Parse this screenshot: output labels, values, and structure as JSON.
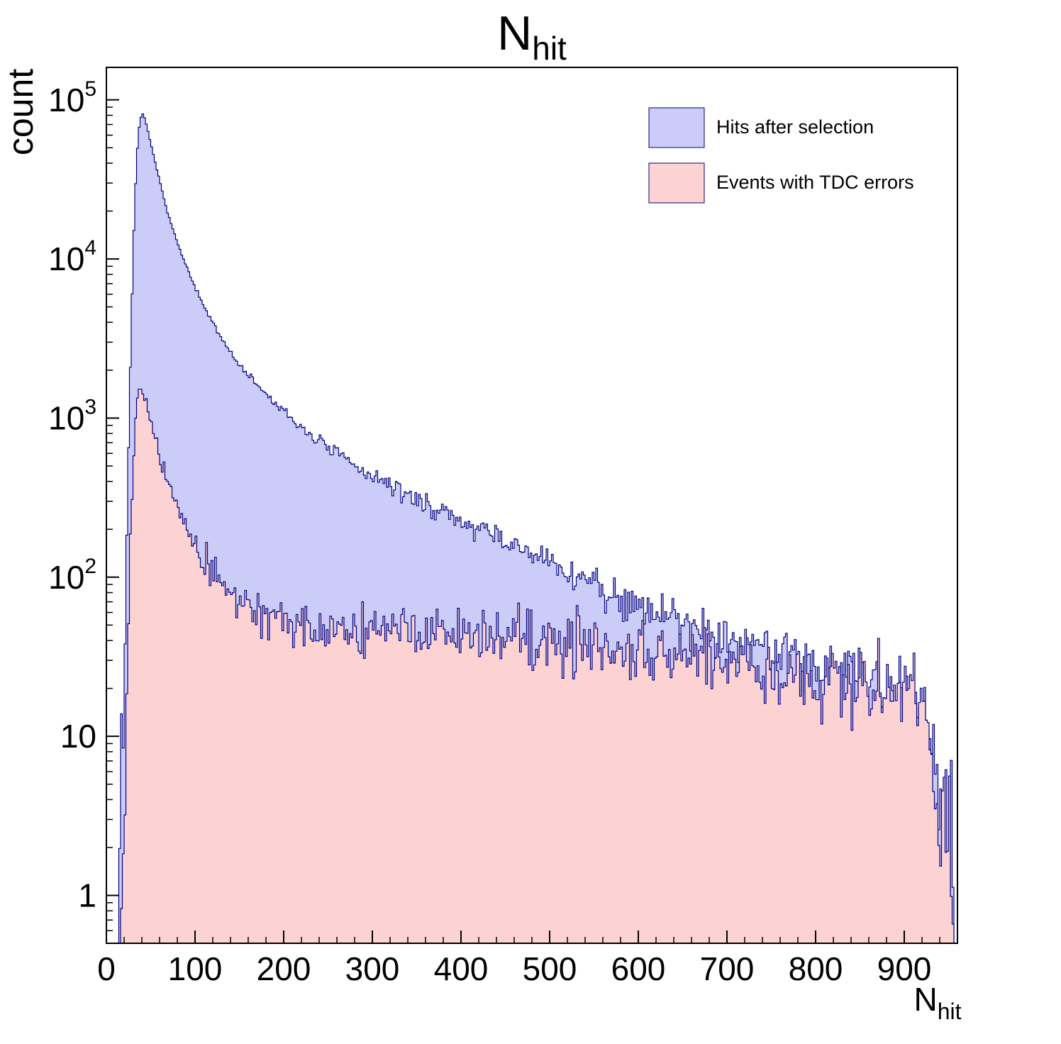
{
  "chart_data": {
    "type": "histogram",
    "title": {
      "main": "N",
      "sub": "hit"
    },
    "xlabel": {
      "main": "N",
      "sub": "hit"
    },
    "ylabel": "count",
    "x_range": [
      0,
      960
    ],
    "y_range": [
      0.5,
      160000
    ],
    "y_scale": "log",
    "grid": false,
    "bin_width": 2,
    "noise_scale": 1.25,
    "x_ticks": {
      "major": [
        0,
        100,
        200,
        300,
        400,
        500,
        600,
        700,
        800,
        900
      ],
      "minor_step": 20
    },
    "y_ticks": [
      {
        "value": 1,
        "label": "1"
      },
      {
        "value": 10,
        "label": "10"
      },
      {
        "value": 100,
        "label": "10",
        "sup": "2"
      },
      {
        "value": 1000,
        "label": "10",
        "sup": "3"
      },
      {
        "value": 10000,
        "label": "10",
        "sup": "4"
      },
      {
        "value": 100000,
        "label": "10",
        "sup": "5"
      }
    ],
    "legend": {
      "position": "top-right",
      "items": [
        {
          "label": "Hits after selection",
          "swatch": "#ccccf8",
          "line": "#000080"
        },
        {
          "label": "Events with TDC errors",
          "swatch": "#fcd2d2",
          "line": "#000080"
        }
      ]
    },
    "series": [
      {
        "name": "Hits after selection",
        "fill": "#ccccf8",
        "line": "#000080",
        "noise_seed": 7,
        "points": [
          [
            10,
            0.5
          ],
          [
            13,
            0.8
          ],
          [
            16,
            2
          ],
          [
            18,
            6
          ],
          [
            20,
            25
          ],
          [
            22,
            90
          ],
          [
            24,
            350
          ],
          [
            26,
            1200
          ],
          [
            28,
            3800
          ],
          [
            30,
            10000
          ],
          [
            32,
            22000
          ],
          [
            34,
            40000
          ],
          [
            36,
            60000
          ],
          [
            38,
            74000
          ],
          [
            40,
            82000
          ],
          [
            42,
            80000
          ],
          [
            44,
            74000
          ],
          [
            46,
            67000
          ],
          [
            48,
            60000
          ],
          [
            50,
            53000
          ],
          [
            53,
            45000
          ],
          [
            56,
            38500
          ],
          [
            60,
            31000
          ],
          [
            65,
            24000
          ],
          [
            70,
            19000
          ],
          [
            75,
            15400
          ],
          [
            80,
            12700
          ],
          [
            85,
            10600
          ],
          [
            90,
            9000
          ],
          [
            95,
            7700
          ],
          [
            100,
            6600
          ],
          [
            110,
            5000
          ],
          [
            120,
            3950
          ],
          [
            130,
            3180
          ],
          [
            140,
            2600
          ],
          [
            150,
            2170
          ],
          [
            160,
            1860
          ],
          [
            170,
            1610
          ],
          [
            180,
            1410
          ],
          [
            190,
            1240
          ],
          [
            200,
            1090
          ],
          [
            215,
            920
          ],
          [
            230,
            790
          ],
          [
            245,
            685
          ],
          [
            260,
            595
          ],
          [
            280,
            500
          ],
          [
            300,
            432
          ],
          [
            320,
            376
          ],
          [
            340,
            328
          ],
          [
            360,
            288
          ],
          [
            380,
            254
          ],
          [
            400,
            224
          ],
          [
            420,
            199
          ],
          [
            440,
            177
          ],
          [
            460,
            157
          ],
          [
            480,
            139
          ],
          [
            500,
            122
          ],
          [
            520,
            108
          ],
          [
            540,
            96
          ],
          [
            560,
            85
          ],
          [
            580,
            76
          ],
          [
            600,
            68
          ],
          [
            620,
            61
          ],
          [
            640,
            55
          ],
          [
            660,
            50
          ],
          [
            680,
            46
          ],
          [
            700,
            42
          ],
          [
            720,
            39
          ],
          [
            740,
            36
          ],
          [
            760,
            33
          ],
          [
            780,
            31
          ],
          [
            800,
            29
          ],
          [
            820,
            27
          ],
          [
            840,
            25
          ],
          [
            860,
            23
          ],
          [
            880,
            21
          ],
          [
            900,
            19
          ],
          [
            915,
            17
          ],
          [
            925,
            15
          ],
          [
            932,
            11
          ],
          [
            938,
            7
          ],
          [
            944,
            3
          ],
          [
            950,
            1.2
          ],
          [
            956,
            0.8
          ],
          [
            960,
            0.5
          ]
        ]
      },
      {
        "name": "Events with TDC errors",
        "fill": "#fcd2d2",
        "line": "#000080",
        "noise_seed": 13,
        "points": [
          [
            12,
            0.5
          ],
          [
            15,
            0.8
          ],
          [
            18,
            2
          ],
          [
            21,
            8
          ],
          [
            24,
            40
          ],
          [
            27,
            160
          ],
          [
            30,
            480
          ],
          [
            32,
            800
          ],
          [
            34,
            1150
          ],
          [
            36,
            1380
          ],
          [
            38,
            1500
          ],
          [
            40,
            1490
          ],
          [
            42,
            1420
          ],
          [
            44,
            1310
          ],
          [
            46,
            1190
          ],
          [
            48,
            1070
          ],
          [
            50,
            960
          ],
          [
            53,
            820
          ],
          [
            56,
            700
          ],
          [
            60,
            580
          ],
          [
            65,
            460
          ],
          [
            70,
            380
          ],
          [
            75,
            320
          ],
          [
            80,
            272
          ],
          [
            85,
            235
          ],
          [
            90,
            205
          ],
          [
            95,
            180
          ],
          [
            100,
            158
          ],
          [
            110,
            127
          ],
          [
            120,
            106
          ],
          [
            130,
            92
          ],
          [
            140,
            81
          ],
          [
            150,
            73
          ],
          [
            160,
            66
          ],
          [
            170,
            62
          ],
          [
            180,
            58
          ],
          [
            190,
            55
          ],
          [
            200,
            53
          ],
          [
            220,
            50
          ],
          [
            240,
            48
          ],
          [
            260,
            47
          ],
          [
            280,
            46
          ],
          [
            300,
            46
          ],
          [
            320,
            45
          ],
          [
            340,
            45
          ],
          [
            360,
            44
          ],
          [
            380,
            44
          ],
          [
            400,
            44
          ],
          [
            420,
            43
          ],
          [
            440,
            43
          ],
          [
            460,
            42
          ],
          [
            480,
            41
          ],
          [
            500,
            40
          ],
          [
            520,
            39
          ],
          [
            540,
            38
          ],
          [
            560,
            37
          ],
          [
            580,
            36
          ],
          [
            600,
            35
          ],
          [
            620,
            34
          ],
          [
            640,
            33
          ],
          [
            660,
            32
          ],
          [
            680,
            31
          ],
          [
            700,
            30
          ],
          [
            720,
            29
          ],
          [
            740,
            27
          ],
          [
            760,
            26
          ],
          [
            780,
            25
          ],
          [
            800,
            23
          ],
          [
            820,
            22
          ],
          [
            840,
            21
          ],
          [
            860,
            20
          ],
          [
            880,
            19
          ],
          [
            900,
            18
          ],
          [
            915,
            16
          ],
          [
            925,
            14
          ],
          [
            932,
            10
          ],
          [
            938,
            6
          ],
          [
            944,
            2.5
          ],
          [
            950,
            0.9
          ],
          [
            956,
            0.5
          ]
        ]
      }
    ]
  }
}
